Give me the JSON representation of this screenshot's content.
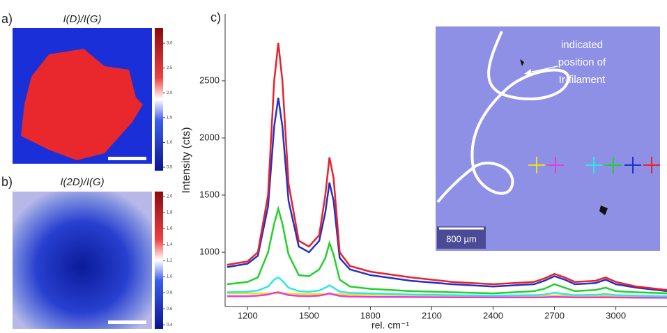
{
  "maps": [
    {
      "label": "a)",
      "title": "I(D)/I(G)",
      "clim": [
        0.43,
        3.31
      ],
      "colorbar_ticks": [
        0.5,
        {
          "value": 1.0,
          "label": "1.0"
        },
        1.5,
        {
          "value": 2.0,
          "label": "2.0"
        },
        2.5,
        {
          "value": 3.0,
          "label": "3.0"
        }
      ]
    },
    {
      "label": "b)",
      "title": "I(2D)/I(G)",
      "clim": [
        0.35,
        2.06
      ],
      "colorbar_ticks": [
        0.4,
        0.6,
        0.8,
        {
          "value": 1.0,
          "label": "1.0"
        },
        1.2,
        1.4,
        1.6,
        1.8,
        {
          "value": 2.0,
          "label": "2.0"
        }
      ]
    }
  ],
  "chart_data": {
    "type": "line",
    "panel_label": "c)",
    "x_label": "rel. cm⁻¹",
    "y_label": "Intensity (cts)",
    "x": [
      1100,
      1200,
      1250,
      1300,
      1330,
      1350,
      1370,
      1400,
      1450,
      1500,
      1550,
      1580,
      1600,
      1620,
      1650,
      1700,
      1800,
      2000,
      2200,
      2400,
      2600,
      2650,
      2700,
      2750,
      2800,
      2900,
      2950,
      3000,
      3100,
      3250
    ],
    "series": [
      {
        "color": "#e8212a",
        "values": [
          890,
          920,
          1000,
          1500,
          2500,
          2830,
          2500,
          1600,
          1100,
          1050,
          1150,
          1500,
          1830,
          1650,
          1000,
          880,
          830,
          780,
          740,
          720,
          740,
          770,
          810,
          780,
          740,
          750,
          780,
          740,
          700,
          670
        ]
      },
      {
        "color": "#2230c8",
        "values": [
          870,
          900,
          970,
          1400,
          2100,
          2350,
          2100,
          1450,
          1050,
          1000,
          1100,
          1350,
          1610,
          1450,
          950,
          850,
          800,
          750,
          720,
          700,
          720,
          750,
          790,
          760,
          720,
          730,
          760,
          720,
          690,
          660
        ]
      },
      {
        "color": "#22d02a",
        "values": [
          720,
          740,
          780,
          1000,
          1250,
          1380,
          1250,
          980,
          800,
          790,
          850,
          950,
          1080,
          980,
          760,
          700,
          680,
          660,
          650,
          640,
          660,
          680,
          720,
          690,
          660,
          670,
          690,
          660,
          650,
          640
        ]
      },
      {
        "color": "#2ee6e6",
        "values": [
          650,
          655,
          665,
          700,
          760,
          780,
          750,
          690,
          660,
          655,
          665,
          690,
          710,
          690,
          655,
          645,
          640,
          630,
          625,
          620,
          625,
          630,
          645,
          635,
          625,
          628,
          635,
          625,
          620,
          615
        ]
      },
      {
        "color": "#e83ad8",
        "values": [
          615,
          615,
          620,
          630,
          645,
          650,
          640,
          625,
          618,
          616,
          620,
          630,
          640,
          630,
          618,
          612,
          610,
          608,
          606,
          605,
          605,
          606,
          610,
          607,
          605,
          605,
          606,
          604,
          603,
          602
        ]
      },
      {
        "color": "#e8e020",
        "values": [
          640,
          640,
          640,
          640,
          640,
          640,
          640,
          638,
          636,
          635,
          634,
          634,
          634,
          633,
          632,
          630,
          628,
          625,
          622,
          620,
          620,
          620,
          620,
          620,
          618,
          618,
          618,
          617,
          616,
          615
        ]
      }
    ],
    "xlim": [
      1090,
      3250
    ],
    "ylim": [
      525,
      3085
    ],
    "xticks": [
      1200,
      1500,
      1800,
      2100,
      2400,
      2700,
      3000
    ],
    "yticks": [
      1000,
      1500,
      2000,
      2500
    ],
    "inset": {
      "annotation": [
        "indicated",
        "position of",
        "Ir-filament"
      ],
      "scale_bar": "800 µm"
    }
  }
}
